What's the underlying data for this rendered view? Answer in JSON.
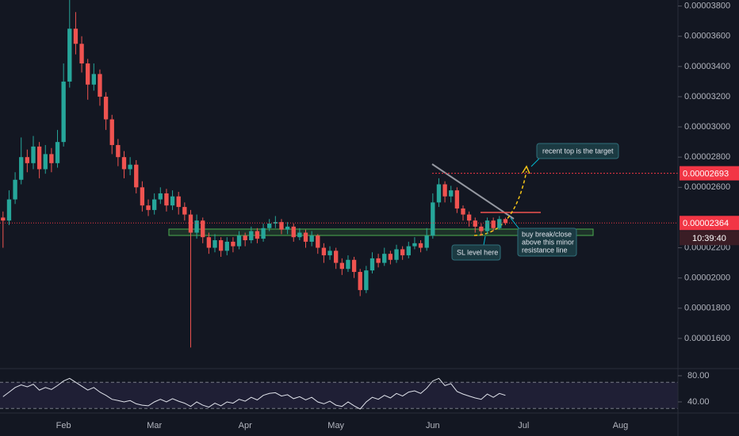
{
  "chart_data": {
    "type": "candlestick",
    "up_color": "#26a69a",
    "down_color": "#ef5350",
    "categories": [
      null,
      null,
      null,
      null,
      null,
      null,
      null,
      null,
      null,
      null,
      "Feb",
      null,
      null,
      null,
      null,
      null,
      null,
      null,
      null,
      null,
      null,
      null,
      null,
      null,
      null,
      "Mar",
      null,
      null,
      null,
      null,
      null,
      null,
      null,
      null,
      null,
      null,
      null,
      null,
      null,
      null,
      "Apr",
      null,
      null,
      null,
      null,
      null,
      null,
      null,
      null,
      null,
      null,
      null,
      null,
      null,
      null,
      "May",
      null,
      null,
      null,
      null,
      null,
      null,
      null,
      null,
      null,
      null,
      null,
      null,
      null,
      null,
      null,
      "Jun",
      null,
      null,
      null,
      null,
      null,
      null,
      null,
      null,
      null,
      null,
      null,
      null,
      null,
      null,
      "Jul",
      null,
      null,
      null,
      null,
      null,
      null,
      null,
      null,
      null,
      null,
      null,
      null,
      null,
      null,
      null,
      "Aug",
      null,
      null,
      null,
      null,
      null,
      null,
      null,
      null,
      null
    ],
    "open": [
      2.4e-05,
      2.38e-05,
      2.52e-05,
      2.65e-05,
      2.8e-05,
      2.76e-05,
      2.87e-05,
      2.72e-05,
      2.82e-05,
      2.76e-05,
      2.9e-05,
      3.3e-05,
      3.65e-05,
      3.55e-05,
      3.42e-05,
      3.28e-05,
      3.35e-05,
      3.2e-05,
      3.05e-05,
      2.88e-05,
      2.8e-05,
      2.72e-05,
      2.75e-05,
      2.6e-05,
      2.48e-05,
      2.45e-05,
      2.52e-05,
      2.56e-05,
      2.48e-05,
      2.54e-05,
      2.47e-05,
      2.42e-05,
      2.3e-05,
      2.38e-05,
      2.27e-05,
      2.2e-05,
      2.25e-05,
      2.18e-05,
      2.24e-05,
      2.21e-05,
      2.28e-05,
      2.25e-05,
      2.31e-05,
      2.26e-05,
      2.33e-05,
      2.36e-05,
      2.37e-05,
      2.32e-05,
      2.34e-05,
      2.27e-05,
      2.3e-05,
      2.24e-05,
      2.28e-05,
      2.2e-05,
      2.15e-05,
      2.18e-05,
      2.1e-05,
      2.06e-05,
      2.12e-05,
      2.04e-05,
      1.92e-05,
      2.05e-05,
      2.13e-05,
      2.1e-05,
      2.16e-05,
      2.12e-05,
      2.19e-05,
      2.15e-05,
      2.21e-05,
      2.23e-05,
      2.2e-05,
      2.28e-05,
      2.5e-05,
      2.62e-05,
      2.54e-05,
      2.58e-05,
      2.46e-05,
      2.42e-05,
      2.38e-05,
      2.34e-05,
      2.31e-05,
      2.38e-05,
      2.33e-05,
      2.39e-05,
      null,
      null,
      null,
      null,
      null,
      null,
      null,
      null,
      null,
      null,
      null,
      null,
      null,
      null,
      null,
      null,
      null,
      null,
      null,
      null,
      null,
      null,
      null,
      null,
      null,
      null,
      null,
      null
    ],
    "high": [
      2.44e-05,
      2.58e-05,
      2.7e-05,
      2.93e-05,
      2.85e-05,
      2.94e-05,
      2.9e-05,
      2.88e-05,
      2.86e-05,
      2.98e-05,
      3.42e-05,
      3.84e-05,
      3.76e-05,
      3.6e-05,
      3.45e-05,
      3.42e-05,
      3.38e-05,
      3.23e-05,
      3.08e-05,
      2.92e-05,
      2.84e-05,
      2.8e-05,
      2.78e-05,
      2.64e-05,
      2.52e-05,
      2.56e-05,
      2.6e-05,
      2.59e-05,
      2.58e-05,
      2.57e-05,
      2.5e-05,
      2.45e-05,
      2.42e-05,
      2.4e-05,
      2.3e-05,
      2.29e-05,
      2.27e-05,
      2.27e-05,
      2.27e-05,
      2.31e-05,
      2.3e-05,
      2.34e-05,
      2.33e-05,
      2.36e-05,
      2.39e-05,
      2.41e-05,
      2.39e-05,
      2.37e-05,
      2.36e-05,
      2.33e-05,
      2.32e-05,
      2.31e-05,
      2.29e-05,
      2.23e-05,
      2.21e-05,
      2.2e-05,
      2.13e-05,
      2.15e-05,
      2.14e-05,
      2.06e-05,
      2.08e-05,
      2.17e-05,
      2.16e-05,
      2.2e-05,
      2.18e-05,
      2.22e-05,
      2.21e-05,
      2.24e-05,
      2.27e-05,
      2.25e-05,
      2.33e-05,
      2.56e-05,
      2.66e-05,
      2.64e-05,
      2.61e-05,
      2.6e-05,
      2.48e-05,
      2.44e-05,
      2.4e-05,
      2.36e-05,
      2.4e-05,
      2.4e-05,
      2.41e-05,
      2.4e-05,
      null,
      null,
      null,
      null,
      null,
      null,
      null,
      null,
      null,
      null,
      null,
      null,
      null,
      null,
      null,
      null,
      null,
      null,
      null,
      null,
      null,
      null,
      null,
      null,
      null,
      null,
      null,
      null
    ],
    "low": [
      2.2e-05,
      2.35e-05,
      2.49e-05,
      2.62e-05,
      2.7e-05,
      2.72e-05,
      2.66e-05,
      2.69e-05,
      2.7e-05,
      2.73e-05,
      2.87e-05,
      3.26e-05,
      3.48e-05,
      3.36e-05,
      3.18e-05,
      3.24e-05,
      3.14e-05,
      2.98e-05,
      2.82e-05,
      2.74e-05,
      2.66e-05,
      2.68e-05,
      2.56e-05,
      2.44e-05,
      2.41e-05,
      2.42e-05,
      2.49e-05,
      2.44e-05,
      2.45e-05,
      2.42e-05,
      2.38e-05,
      1.54e-05,
      2.26e-05,
      2.23e-05,
      2.16e-05,
      2.17e-05,
      2.14e-05,
      2.15e-05,
      2.17e-05,
      2.19e-05,
      2.21e-05,
      2.23e-05,
      2.23e-05,
      2.24e-05,
      2.31e-05,
      2.33e-05,
      2.29e-05,
      2.29e-05,
      2.24e-05,
      2.25e-05,
      2.2e-05,
      2.21e-05,
      2.16e-05,
      2.1e-05,
      2.12e-05,
      2.06e-05,
      2.02e-05,
      2.04e-05,
      2e-05,
      1.88e-05,
      1.9e-05,
      2.03e-05,
      2.07e-05,
      2.08e-05,
      2.09e-05,
      2.1e-05,
      2.12e-05,
      2.13e-05,
      2.19e-05,
      2.17e-05,
      2.18e-05,
      2.26e-05,
      2.47e-05,
      2.5e-05,
      2.5e-05,
      2.43e-05,
      2.38e-05,
      2.34e-05,
      2.3e-05,
      2.28e-05,
      2.29e-05,
      2.31e-05,
      2.32e-05,
      2.35e-05,
      null,
      null,
      null,
      null,
      null,
      null,
      null,
      null,
      null,
      null,
      null,
      null,
      null,
      null,
      null,
      null,
      null,
      null,
      null,
      null,
      null,
      null,
      null,
      null,
      null,
      null,
      null,
      null
    ],
    "close": [
      2.38e-05,
      2.52e-05,
      2.65e-05,
      2.8e-05,
      2.76e-05,
      2.87e-05,
      2.72e-05,
      2.82e-05,
      2.76e-05,
      2.9e-05,
      3.3e-05,
      3.65e-05,
      3.55e-05,
      3.42e-05,
      3.28e-05,
      3.35e-05,
      3.2e-05,
      3.05e-05,
      2.88e-05,
      2.8e-05,
      2.72e-05,
      2.75e-05,
      2.6e-05,
      2.48e-05,
      2.45e-05,
      2.52e-05,
      2.56e-05,
      2.48e-05,
      2.54e-05,
      2.47e-05,
      2.42e-05,
      2.3e-05,
      2.38e-05,
      2.27e-05,
      2.2e-05,
      2.25e-05,
      2.18e-05,
      2.24e-05,
      2.21e-05,
      2.28e-05,
      2.25e-05,
      2.31e-05,
      2.26e-05,
      2.33e-05,
      2.36e-05,
      2.37e-05,
      2.32e-05,
      2.34e-05,
      2.27e-05,
      2.3e-05,
      2.24e-05,
      2.28e-05,
      2.2e-05,
      2.15e-05,
      2.18e-05,
      2.1e-05,
      2.06e-05,
      2.12e-05,
      2.04e-05,
      1.92e-05,
      2.05e-05,
      2.13e-05,
      2.1e-05,
      2.16e-05,
      2.12e-05,
      2.19e-05,
      2.15e-05,
      2.21e-05,
      2.23e-05,
      2.2e-05,
      2.28e-05,
      2.5e-05,
      2.62e-05,
      2.54e-05,
      2.58e-05,
      2.46e-05,
      2.42e-05,
      2.38e-05,
      2.34e-05,
      2.31e-05,
      2.38e-05,
      2.33e-05,
      2.39e-05,
      2.364e-05,
      null,
      null,
      null,
      null,
      null,
      null,
      null,
      null,
      null,
      null,
      null,
      null,
      null,
      null,
      null,
      null,
      null,
      null,
      null,
      null,
      null,
      null,
      null,
      null,
      null,
      null,
      null,
      null
    ],
    "ylim": [
      1.4e-05,
      3.84e-05
    ],
    "yticks": [
      {
        "value": 3.8e-05,
        "label": "0.00003800"
      },
      {
        "value": 3.6e-05,
        "label": "0.00003600"
      },
      {
        "value": 3.4e-05,
        "label": "0.00003400"
      },
      {
        "value": 3.2e-05,
        "label": "0.00003200"
      },
      {
        "value": 3e-05,
        "label": "0.00003000"
      },
      {
        "value": 2.8e-05,
        "label": "0.00002800"
      },
      {
        "value": 2.6e-05,
        "label": "0.00002600"
      },
      {
        "value": 2.2e-05,
        "label": "0.00002200"
      },
      {
        "value": 2e-05,
        "label": "0.00002000"
      },
      {
        "value": 1.8e-05,
        "label": "0.00001800"
      },
      {
        "value": 1.6e-05,
        "label": "0.00001600"
      }
    ],
    "price_lines": [
      {
        "value": 2.693e-05,
        "color": "#f23645"
      },
      {
        "value": 2.364e-05,
        "color": "#f23645"
      }
    ],
    "countdown": "10:39:40",
    "annotations": [
      {
        "lines": [
          "recent top is the target"
        ]
      },
      {
        "lines": [
          "SL level here"
        ]
      },
      {
        "lines": [
          "buy break/close",
          "above this minor",
          "resistance line"
        ]
      }
    ],
    "rsi": {
      "color": "#e0e3eb",
      "band_color": "#7e57c2",
      "values": [
        48,
        55,
        62,
        66,
        63,
        67,
        58,
        62,
        59,
        65,
        72,
        76,
        70,
        64,
        58,
        62,
        55,
        50,
        44,
        42,
        40,
        42,
        37,
        35,
        34,
        40,
        44,
        40,
        45,
        41,
        38,
        33,
        40,
        35,
        32,
        38,
        34,
        40,
        38,
        44,
        41,
        47,
        43,
        50,
        53,
        54,
        49,
        51,
        45,
        48,
        43,
        47,
        40,
        37,
        41,
        35,
        33,
        40,
        34,
        29,
        40,
        47,
        44,
        50,
        46,
        53,
        49,
        55,
        57,
        53,
        61,
        72,
        76,
        65,
        68,
        56,
        52,
        49,
        46,
        44,
        52,
        47,
        53,
        50,
        null,
        null,
        null,
        null,
        null,
        null,
        null,
        null,
        null,
        null,
        null,
        null,
        null,
        null,
        null,
        null,
        null,
        null,
        null,
        null,
        null,
        null,
        null,
        null,
        null,
        null,
        null,
        null
      ],
      "ylim": [
        24.2,
        89.7
      ],
      "bands": [
        30,
        70
      ],
      "yticks": [
        {
          "value": 80,
          "label": "80.00"
        },
        {
          "value": 40,
          "label": "40.00"
        }
      ]
    }
  }
}
